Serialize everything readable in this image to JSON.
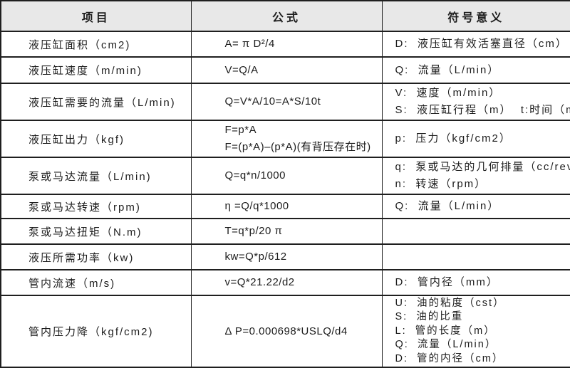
{
  "colors": {
    "header_bg": "#e8e8e8",
    "border": "#1f1f1f",
    "text": "#1d1d1d",
    "row_bg": "#ffffff"
  },
  "table": {
    "columns": [
      {
        "label": "项目"
      },
      {
        "label": "公式"
      },
      {
        "label": "符号意义"
      }
    ],
    "rows": [
      {
        "item": "液压缸面积（cm2)",
        "formula": [
          "A= π D²/4"
        ],
        "symbols": [
          "D:  液压缸有效活塞直径（cm）"
        ]
      },
      {
        "item": "液压缸速度（m/min)",
        "formula": [
          "V=Q/A"
        ],
        "symbols": [
          "Q:  流量（L/min）"
        ]
      },
      {
        "item": "液压缸需要的流量（L/min)",
        "formula": [
          "Q=V*A/10=A*S/10t"
        ],
        "symbols": [
          "V:  速度（m/min）",
          "S:  液压缸行程（m）  t:时间（min）"
        ]
      },
      {
        "item": "液压缸出力（kgf)",
        "formula": [
          "F=p*A",
          "F=(p*A)–(p*A)(有背压存在时)"
        ],
        "symbols": [
          "p:  压力（kgf/cm2）"
        ]
      },
      {
        "item": "泵或马达流量（L/min)",
        "formula": [
          "Q=q*n/1000"
        ],
        "symbols": [
          "q:  泵或马达的几何排量（cc/rev）",
          "n:  转速（rpm）"
        ]
      },
      {
        "item": "泵或马达转速（rpm)",
        "formula": [
          "η =Q/q*1000"
        ],
        "symbols": [
          "Q:  流量（L/min）"
        ]
      },
      {
        "item": "泵或马达扭矩（N.m)",
        "formula": [
          "T=q*p/20 π"
        ],
        "symbols": []
      },
      {
        "item": "液压所需功率（kw)",
        "formula": [
          "kw=Q*p/612"
        ],
        "symbols": []
      },
      {
        "item": "管内流速（m/s)",
        "formula": [
          "v=Q*21.22/d2"
        ],
        "symbols": [
          "D:  管内径（mm）"
        ]
      },
      {
        "item": "管内压力降（kgf/cm2)",
        "formula": [
          "Δ P=0.000698*USLQ/d4"
        ],
        "symbols": [
          "U:  油的粘度（cst）",
          "S:  油的比重",
          "L:  管的长度（m）",
          "Q:  流量（L/min）",
          "D:  管的内径（cm）"
        ]
      }
    ]
  }
}
